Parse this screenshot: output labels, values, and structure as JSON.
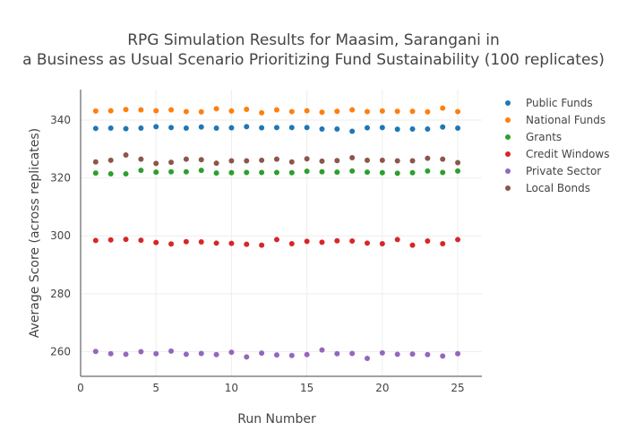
{
  "chart_data": {
    "type": "scatter",
    "title_lines": [
      "RPG Simulation Results for Maasim, Sarangani in",
      "a Business as Usual Scenario Prioritizing Fund Sustainability (100 replicates)"
    ],
    "xlabel": "Run Number",
    "ylabel": "Average Score (across replicates)",
    "xlim": [
      0,
      26.6
    ],
    "ylim": [
      251.5,
      350.5
    ],
    "xticks": [
      0,
      5,
      10,
      15,
      20,
      25
    ],
    "yticks": [
      260,
      280,
      300,
      320,
      340
    ],
    "grid": true,
    "legend_position": "top-right",
    "x": [
      1,
      2,
      3,
      4,
      5,
      6,
      7,
      8,
      9,
      10,
      11,
      12,
      13,
      14,
      15,
      16,
      17,
      18,
      19,
      20,
      21,
      22,
      23,
      24,
      25
    ],
    "series": [
      {
        "name": "Public Funds",
        "color": "#1f77b4",
        "values": [
          337.1,
          337.2,
          337.0,
          337.2,
          337.7,
          337.4,
          337.2,
          337.6,
          337.2,
          337.3,
          337.7,
          337.3,
          337.4,
          337.4,
          337.4,
          336.9,
          336.9,
          336.1,
          337.3,
          337.4,
          336.8,
          336.9,
          336.9,
          337.6,
          337.2
        ]
      },
      {
        "name": "National Funds",
        "color": "#ff7f0e",
        "values": [
          343.1,
          343.2,
          343.6,
          343.5,
          343.2,
          343.5,
          342.9,
          342.8,
          343.9,
          343.1,
          343.7,
          342.5,
          343.5,
          342.9,
          343.2,
          342.7,
          343.0,
          343.5,
          342.9,
          343.1,
          343.0,
          343.0,
          342.8,
          344.1,
          342.9
        ]
      },
      {
        "name": "Grants",
        "color": "#2ca02c",
        "values": [
          321.7,
          321.4,
          321.4,
          322.6,
          322.0,
          322.1,
          322.1,
          322.6,
          321.7,
          321.8,
          321.9,
          321.9,
          321.9,
          321.8,
          322.3,
          322.1,
          322.0,
          322.4,
          322.0,
          321.8,
          321.6,
          321.8,
          322.4,
          321.9,
          322.4
        ]
      },
      {
        "name": "Credit Windows",
        "color": "#d62728",
        "values": [
          298.4,
          298.6,
          298.8,
          298.5,
          297.7,
          297.2,
          298.0,
          297.9,
          297.5,
          297.4,
          297.1,
          296.8,
          298.7,
          297.3,
          298.1,
          297.8,
          298.3,
          298.2,
          297.5,
          297.3,
          298.7,
          296.8,
          298.2,
          297.3,
          298.7
        ]
      },
      {
        "name": "Private Sector",
        "color": "#9467bd",
        "values": [
          260.1,
          259.3,
          259.1,
          260.0,
          259.3,
          260.2,
          259.1,
          259.4,
          259.0,
          259.8,
          258.2,
          259.5,
          258.9,
          258.7,
          259.0,
          260.6,
          259.3,
          259.4,
          257.7,
          259.6,
          259.1,
          259.2,
          259.0,
          258.5,
          259.3
        ]
      },
      {
        "name": "Local Bonds",
        "color": "#8c564b",
        "values": [
          325.5,
          326.1,
          327.9,
          326.5,
          325.0,
          325.4,
          326.5,
          326.3,
          325.1,
          325.9,
          325.9,
          326.1,
          326.5,
          325.5,
          326.6,
          325.8,
          326.0,
          327.0,
          326.1,
          326.1,
          325.9,
          325.9,
          326.8,
          326.5,
          325.3
        ]
      }
    ]
  }
}
